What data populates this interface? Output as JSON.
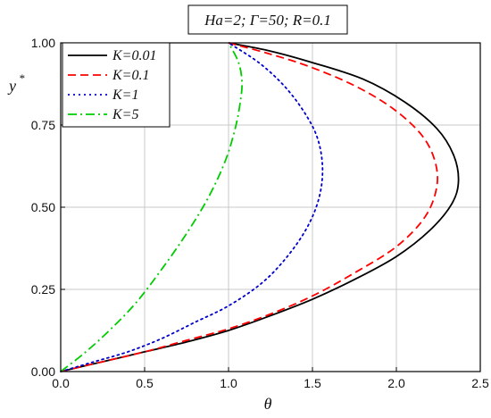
{
  "chart_data": {
    "type": "line",
    "title": "Ha=2; Γ=50; R=0.1",
    "xlabel": "θ",
    "ylabel": "y",
    "ylabel_superscript": "*",
    "xlim": [
      0,
      2.5
    ],
    "ylim": [
      0,
      1.0
    ],
    "xticks": [
      "0.0",
      "0.5",
      "1.0",
      "1.5",
      "2.0",
      "2.5"
    ],
    "yticks": [
      "0.00",
      "0.25",
      "0.50",
      "0.75",
      "1.00"
    ],
    "grid": true,
    "legend_position": "top-left",
    "series": [
      {
        "name": "K=0.01",
        "color": "#000000",
        "dash": "solid",
        "points": [
          [
            0,
            0
          ],
          [
            0.25,
            0.03
          ],
          [
            0.5,
            0.06
          ],
          [
            0.75,
            0.09
          ],
          [
            1.0,
            0.125
          ],
          [
            1.25,
            0.17
          ],
          [
            1.5,
            0.22
          ],
          [
            1.75,
            0.28
          ],
          [
            2.0,
            0.35
          ],
          [
            2.2,
            0.43
          ],
          [
            2.33,
            0.51
          ],
          [
            2.37,
            0.58
          ],
          [
            2.34,
            0.66
          ],
          [
            2.24,
            0.74
          ],
          [
            2.05,
            0.82
          ],
          [
            1.8,
            0.89
          ],
          [
            1.5,
            0.94
          ],
          [
            1.25,
            0.975
          ],
          [
            1.0,
            1.0
          ]
        ]
      },
      {
        "name": "K=0.1",
        "color": "#ff0000",
        "dash": "dashed",
        "points": [
          [
            0,
            0
          ],
          [
            0.25,
            0.03
          ],
          [
            0.5,
            0.06
          ],
          [
            0.75,
            0.095
          ],
          [
            1.0,
            0.13
          ],
          [
            1.25,
            0.175
          ],
          [
            1.5,
            0.23
          ],
          [
            1.75,
            0.3
          ],
          [
            2.0,
            0.38
          ],
          [
            2.17,
            0.47
          ],
          [
            2.24,
            0.56
          ],
          [
            2.23,
            0.64
          ],
          [
            2.15,
            0.72
          ],
          [
            1.98,
            0.8
          ],
          [
            1.75,
            0.87
          ],
          [
            1.47,
            0.93
          ],
          [
            1.22,
            0.97
          ],
          [
            1.0,
            1.0
          ]
        ]
      },
      {
        "name": "K=1",
        "color": "#0000cc",
        "dash": "dotted",
        "points": [
          [
            0,
            0
          ],
          [
            0.2,
            0.03
          ],
          [
            0.4,
            0.06
          ],
          [
            0.6,
            0.1
          ],
          [
            0.8,
            0.15
          ],
          [
            1.0,
            0.2
          ],
          [
            1.2,
            0.27
          ],
          [
            1.35,
            0.35
          ],
          [
            1.47,
            0.44
          ],
          [
            1.54,
            0.53
          ],
          [
            1.56,
            0.62
          ],
          [
            1.53,
            0.71
          ],
          [
            1.45,
            0.79
          ],
          [
            1.33,
            0.87
          ],
          [
            1.18,
            0.94
          ],
          [
            1.0,
            1.0
          ]
        ]
      },
      {
        "name": "K=5",
        "color": "#00cc00",
        "dash": "dashdot",
        "points": [
          [
            0,
            0
          ],
          [
            0.15,
            0.06
          ],
          [
            0.3,
            0.13
          ],
          [
            0.45,
            0.21
          ],
          [
            0.6,
            0.31
          ],
          [
            0.75,
            0.42
          ],
          [
            0.88,
            0.53
          ],
          [
            0.98,
            0.64
          ],
          [
            1.04,
            0.74
          ],
          [
            1.07,
            0.82
          ],
          [
            1.08,
            0.88
          ],
          [
            1.06,
            0.94
          ],
          [
            1.0,
            1.0
          ]
        ]
      }
    ]
  }
}
